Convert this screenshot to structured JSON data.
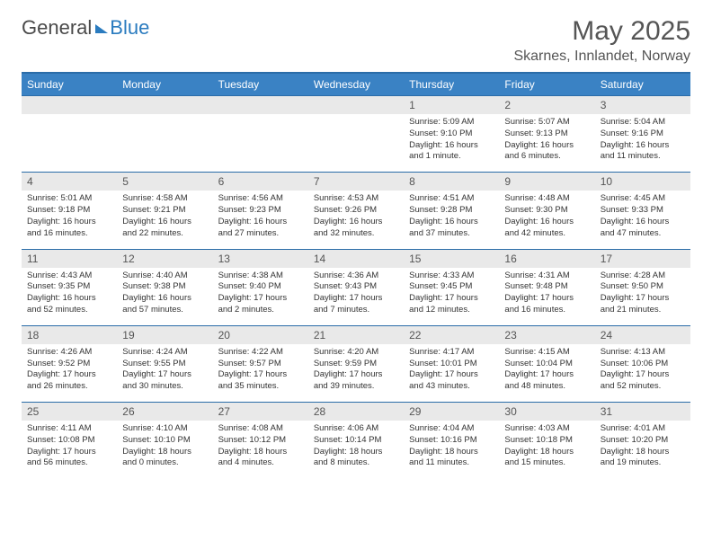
{
  "logo": {
    "text1": "General",
    "text2": "Blue"
  },
  "title": "May 2025",
  "subtitle": "Skarnes, Innlandet, Norway",
  "columns": [
    "Sunday",
    "Monday",
    "Tuesday",
    "Wednesday",
    "Thursday",
    "Friday",
    "Saturday"
  ],
  "colors": {
    "header_bg": "#3a82c4",
    "header_border": "#2a6ca8",
    "daynum_bg": "#e9e9e9",
    "text": "#555555"
  },
  "weeks": [
    {
      "nums": [
        "",
        "",
        "",
        "",
        "1",
        "2",
        "3"
      ],
      "cells": [
        "",
        "",
        "",
        "",
        "Sunrise: 5:09 AM\nSunset: 9:10 PM\nDaylight: 16 hours and 1 minute.",
        "Sunrise: 5:07 AM\nSunset: 9:13 PM\nDaylight: 16 hours and 6 minutes.",
        "Sunrise: 5:04 AM\nSunset: 9:16 PM\nDaylight: 16 hours and 11 minutes."
      ]
    },
    {
      "nums": [
        "4",
        "5",
        "6",
        "7",
        "8",
        "9",
        "10"
      ],
      "cells": [
        "Sunrise: 5:01 AM\nSunset: 9:18 PM\nDaylight: 16 hours and 16 minutes.",
        "Sunrise: 4:58 AM\nSunset: 9:21 PM\nDaylight: 16 hours and 22 minutes.",
        "Sunrise: 4:56 AM\nSunset: 9:23 PM\nDaylight: 16 hours and 27 minutes.",
        "Sunrise: 4:53 AM\nSunset: 9:26 PM\nDaylight: 16 hours and 32 minutes.",
        "Sunrise: 4:51 AM\nSunset: 9:28 PM\nDaylight: 16 hours and 37 minutes.",
        "Sunrise: 4:48 AM\nSunset: 9:30 PM\nDaylight: 16 hours and 42 minutes.",
        "Sunrise: 4:45 AM\nSunset: 9:33 PM\nDaylight: 16 hours and 47 minutes."
      ]
    },
    {
      "nums": [
        "11",
        "12",
        "13",
        "14",
        "15",
        "16",
        "17"
      ],
      "cells": [
        "Sunrise: 4:43 AM\nSunset: 9:35 PM\nDaylight: 16 hours and 52 minutes.",
        "Sunrise: 4:40 AM\nSunset: 9:38 PM\nDaylight: 16 hours and 57 minutes.",
        "Sunrise: 4:38 AM\nSunset: 9:40 PM\nDaylight: 17 hours and 2 minutes.",
        "Sunrise: 4:36 AM\nSunset: 9:43 PM\nDaylight: 17 hours and 7 minutes.",
        "Sunrise: 4:33 AM\nSunset: 9:45 PM\nDaylight: 17 hours and 12 minutes.",
        "Sunrise: 4:31 AM\nSunset: 9:48 PM\nDaylight: 17 hours and 16 minutes.",
        "Sunrise: 4:28 AM\nSunset: 9:50 PM\nDaylight: 17 hours and 21 minutes."
      ]
    },
    {
      "nums": [
        "18",
        "19",
        "20",
        "21",
        "22",
        "23",
        "24"
      ],
      "cells": [
        "Sunrise: 4:26 AM\nSunset: 9:52 PM\nDaylight: 17 hours and 26 minutes.",
        "Sunrise: 4:24 AM\nSunset: 9:55 PM\nDaylight: 17 hours and 30 minutes.",
        "Sunrise: 4:22 AM\nSunset: 9:57 PM\nDaylight: 17 hours and 35 minutes.",
        "Sunrise: 4:20 AM\nSunset: 9:59 PM\nDaylight: 17 hours and 39 minutes.",
        "Sunrise: 4:17 AM\nSunset: 10:01 PM\nDaylight: 17 hours and 43 minutes.",
        "Sunrise: 4:15 AM\nSunset: 10:04 PM\nDaylight: 17 hours and 48 minutes.",
        "Sunrise: 4:13 AM\nSunset: 10:06 PM\nDaylight: 17 hours and 52 minutes."
      ]
    },
    {
      "nums": [
        "25",
        "26",
        "27",
        "28",
        "29",
        "30",
        "31"
      ],
      "cells": [
        "Sunrise: 4:11 AM\nSunset: 10:08 PM\nDaylight: 17 hours and 56 minutes.",
        "Sunrise: 4:10 AM\nSunset: 10:10 PM\nDaylight: 18 hours and 0 minutes.",
        "Sunrise: 4:08 AM\nSunset: 10:12 PM\nDaylight: 18 hours and 4 minutes.",
        "Sunrise: 4:06 AM\nSunset: 10:14 PM\nDaylight: 18 hours and 8 minutes.",
        "Sunrise: 4:04 AM\nSunset: 10:16 PM\nDaylight: 18 hours and 11 minutes.",
        "Sunrise: 4:03 AM\nSunset: 10:18 PM\nDaylight: 18 hours and 15 minutes.",
        "Sunrise: 4:01 AM\nSunset: 10:20 PM\nDaylight: 18 hours and 19 minutes."
      ]
    }
  ]
}
